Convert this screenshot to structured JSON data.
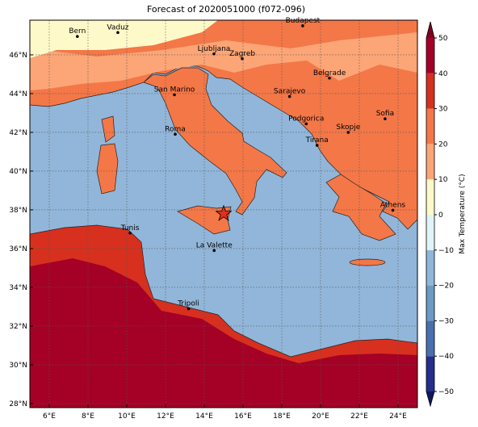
{
  "map": {
    "title": "Forecast of 2020051000 (f072-096)",
    "lonlim": [
      5,
      25
    ],
    "latlim": [
      27.79,
      47.79
    ],
    "lon_ticks": [
      {
        "value": 6,
        "label": "6°E"
      },
      {
        "value": 8,
        "label": "8°E"
      },
      {
        "value": 10,
        "label": "10°E"
      },
      {
        "value": 12,
        "label": "12°E"
      },
      {
        "value": 14,
        "label": "14°E"
      },
      {
        "value": 16,
        "label": "16°E"
      },
      {
        "value": 18,
        "label": "18°E"
      },
      {
        "value": 20,
        "label": "20°E"
      },
      {
        "value": 22,
        "label": "22°E"
      },
      {
        "value": 24,
        "label": "24°E"
      }
    ],
    "lat_ticks": [
      {
        "value": 28,
        "label": "28°N"
      },
      {
        "value": 30,
        "label": "30°N"
      },
      {
        "value": 32,
        "label": "32°N"
      },
      {
        "value": 34,
        "label": "34°N"
      },
      {
        "value": 36,
        "label": "36°N"
      },
      {
        "value": 38,
        "label": "38°N"
      },
      {
        "value": 40,
        "label": "40°N"
      },
      {
        "value": 42,
        "label": "42°N"
      },
      {
        "value": 44,
        "label": "44°N"
      },
      {
        "value": 46,
        "label": "46°N"
      }
    ],
    "grid": true,
    "cities": [
      {
        "name": "Bern",
        "lon": 7.45,
        "lat": 46.95
      },
      {
        "name": "Vaduz",
        "lon": 9.54,
        "lat": 47.15
      },
      {
        "name": "Budapest",
        "lon": 19.08,
        "lat": 47.5
      },
      {
        "name": "Ljubljana",
        "lon": 14.5,
        "lat": 46.05
      },
      {
        "name": "Zagreb",
        "lon": 15.96,
        "lat": 45.8
      },
      {
        "name": "Belgrade",
        "lon": 20.46,
        "lat": 44.8
      },
      {
        "name": "San Marino",
        "lon": 12.46,
        "lat": 43.94
      },
      {
        "name": "Sarajevo",
        "lon": 18.4,
        "lat": 43.85
      },
      {
        "name": "Sofia",
        "lon": 23.33,
        "lat": 42.7
      },
      {
        "name": "Podgorica",
        "lon": 19.26,
        "lat": 42.44
      },
      {
        "name": "Skopje",
        "lon": 21.43,
        "lat": 42.0
      },
      {
        "name": "Roma",
        "lon": 12.5,
        "lat": 41.9
      },
      {
        "name": "Tirana",
        "lon": 19.82,
        "lat": 41.33
      },
      {
        "name": "Athens",
        "lon": 23.73,
        "lat": 37.98
      },
      {
        "name": "Tunis",
        "lon": 10.17,
        "lat": 36.8
      },
      {
        "name": "La Valette",
        "lon": 14.51,
        "lat": 35.9
      },
      {
        "name": "Tripoli",
        "lon": 13.19,
        "lat": 32.89
      }
    ],
    "marker": {
      "lon": 15.0,
      "lat": 37.8,
      "color": "#e0301e"
    },
    "colorbar": {
      "label": "Max Temperature (°C)",
      "levels": [
        -50,
        -40,
        -30,
        -20,
        -10,
        0,
        10,
        20,
        30,
        40,
        50
      ],
      "colors": [
        "#262d8c",
        "#4a6fae",
        "#6c9ac6",
        "#92b6d9",
        "#e1f3f8",
        "#fef9c8",
        "#fca576",
        "#f47747",
        "#d7301f",
        "#a50026"
      ],
      "under_color": "#14175e",
      "over_color": "#7f0020",
      "ticks": [
        {
          "value": -50,
          "label": "−50"
        },
        {
          "value": -40,
          "label": "−40"
        },
        {
          "value": -30,
          "label": "−30"
        },
        {
          "value": -20,
          "label": "−20"
        },
        {
          "value": -10,
          "label": "−10"
        },
        0,
        10,
        20,
        30,
        40,
        50
      ]
    }
  }
}
